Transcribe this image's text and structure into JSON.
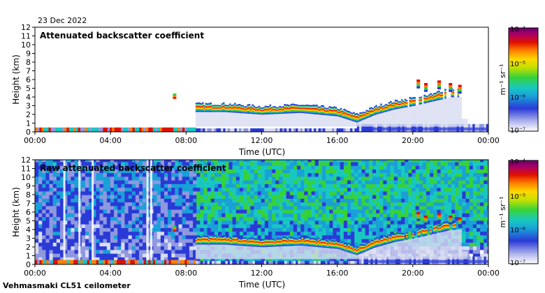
{
  "date_label": "23 Dec 2022",
  "footer": "Vehmasmaki CL51 ceilometer",
  "colors": [
    "#ffffff",
    "#d8dcf0",
    "#8f98e0",
    "#2a3ad6",
    "#1aa0d8",
    "#18c8c0",
    "#36d23a",
    "#c8e000",
    "#ffd600",
    "#ff8000",
    "#e01000",
    "#b00060",
    "#6a0070"
  ],
  "chart_data": [
    {
      "type": "heatmap",
      "title": "Attenuated backscatter coefficient",
      "xlabel": "Time (UTC)",
      "ylabel": "Height (km)",
      "xlim_hours": [
        0,
        24
      ],
      "ylim": [
        0,
        12
      ],
      "x_ticks": [
        "00:00",
        "04:00",
        "08:00",
        "12:00",
        "16:00",
        "20:00",
        "00:00"
      ],
      "y_ticks": [
        "0",
        "1",
        "2",
        "3",
        "4",
        "5",
        "6",
        "7",
        "8",
        "9",
        "10",
        "11",
        "12"
      ],
      "cloud_layer_km": [
        {
          "time_h": 8.5,
          "height": 2.3
        },
        {
          "time_h": 10,
          "height": 2.3
        },
        {
          "time_h": 12,
          "height": 2.0
        },
        {
          "time_h": 14,
          "height": 2.2
        },
        {
          "time_h": 16,
          "height": 1.8
        },
        {
          "time_h": 17,
          "height": 1.1
        },
        {
          "time_h": 18,
          "height": 2.0
        },
        {
          "time_h": 19,
          "height": 2.6
        },
        {
          "time_h": 20,
          "height": 3.0
        },
        {
          "time_h": 22,
          "height": 4.0
        }
      ],
      "colorbar": {
        "label": "m⁻¹ sr⁻¹",
        "ticks": [
          "10⁻⁴",
          "10⁻⁵",
          "10⁻⁶",
          "10⁻⁷"
        ]
      }
    },
    {
      "type": "heatmap",
      "title": "Raw attenuated backscatter coefficient",
      "xlabel": "Time (UTC)",
      "ylabel": "Height (km)",
      "xlim_hours": [
        0,
        24
      ],
      "ylim": [
        0,
        12
      ],
      "x_ticks": [
        "00:00",
        "04:00",
        "08:00",
        "12:00",
        "16:00",
        "20:00",
        "00:00"
      ],
      "y_ticks": [
        "0",
        "1",
        "2",
        "3",
        "4",
        "5",
        "6",
        "7",
        "8",
        "9",
        "10",
        "11",
        "12"
      ],
      "cloud_layer_km": [
        {
          "time_h": 8.5,
          "height": 2.3
        },
        {
          "time_h": 10,
          "height": 2.3
        },
        {
          "time_h": 12,
          "height": 2.0
        },
        {
          "time_h": 14,
          "height": 2.2
        },
        {
          "time_h": 16,
          "height": 1.8
        },
        {
          "time_h": 17,
          "height": 1.1
        },
        {
          "time_h": 18,
          "height": 2.0
        },
        {
          "time_h": 19,
          "height": 2.6
        },
        {
          "time_h": 20,
          "height": 3.0
        },
        {
          "time_h": 22,
          "height": 4.0
        }
      ],
      "colorbar": {
        "label": "m⁻¹ sr⁻¹",
        "ticks": [
          "10⁻⁴",
          "10⁻⁵",
          "10⁻⁶",
          "10⁻⁷"
        ]
      }
    }
  ]
}
